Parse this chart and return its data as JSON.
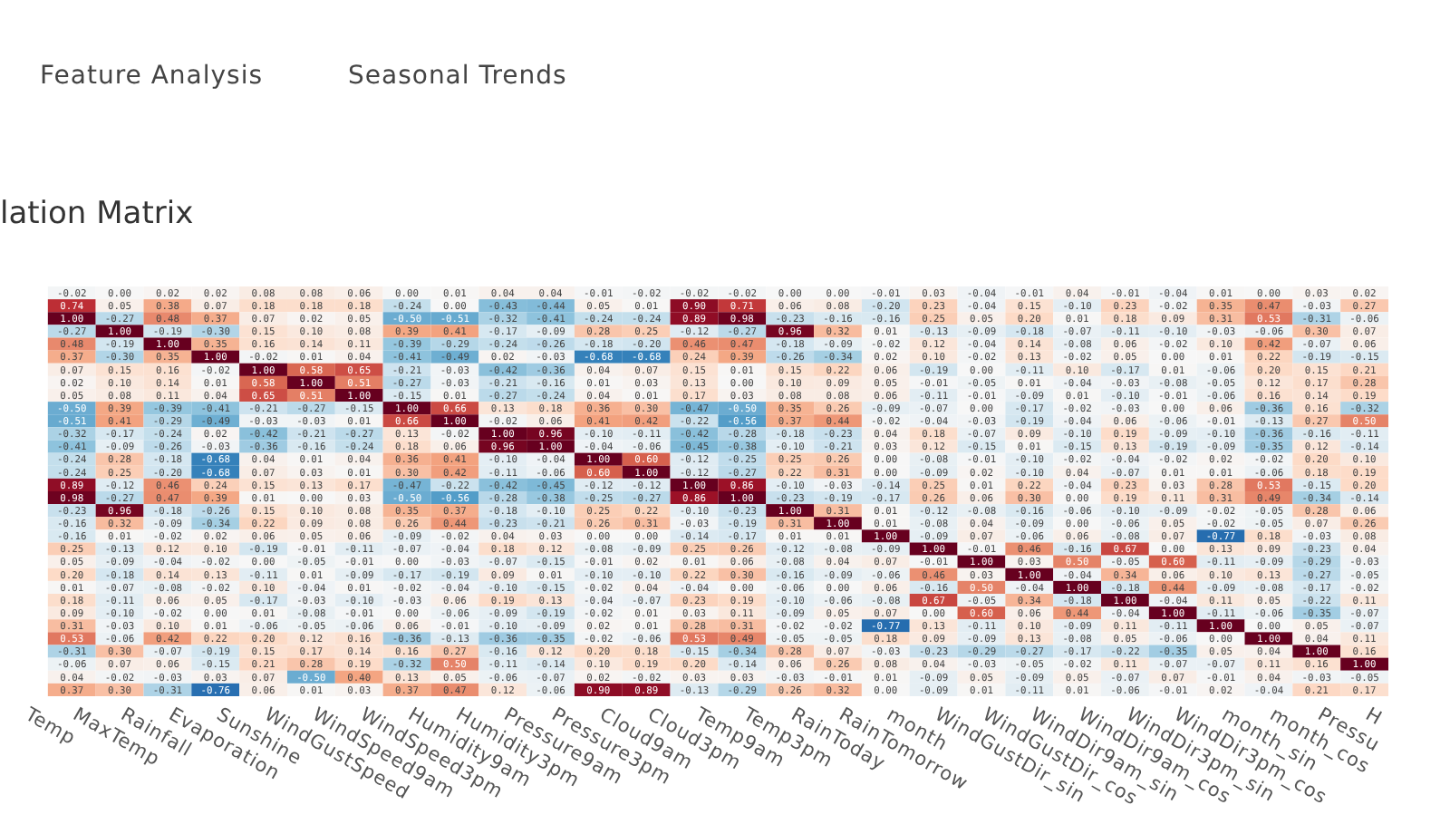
{
  "chart_data": {
    "type": "heatmap",
    "title": "lation Matrix",
    "annotations": [
      "Feature Analysis",
      "Seasonal Trends"
    ],
    "cell_labels": [
      [
        null,
        "-0.02",
        "0.00",
        "0.02",
        "0.02",
        "0.08",
        "0.08",
        "0.06",
        "0.00",
        "0.01",
        "0.04",
        "0.04",
        "-0.01",
        "-0.02",
        "-0.02",
        "-0.02",
        "0.00",
        "0.00",
        "-0.01",
        "0.03",
        "-0.04",
        "-0.01",
        "0.04",
        "-0.01",
        "-0.04",
        "0.01",
        "0.00",
        "0.03",
        "0.02"
      ],
      [
        null,
        "0.74",
        "0.05",
        "0.38",
        "0.07",
        "0.18",
        "0.18",
        "0.18",
        "-0.24",
        "0.00",
        "-0.43",
        "-0.44",
        "0.05",
        "0.01",
        "0.90",
        "0.71",
        "0.06",
        "0.08",
        "-0.20",
        "0.23",
        "-0.04",
        "0.15",
        "-0.10",
        "0.23",
        "-0.02",
        "0.35",
        "0.47",
        "-0.03",
        "0.27"
      ],
      [
        null,
        "1.00",
        "-0.27",
        "0.48",
        "0.37",
        "0.07",
        "0.02",
        "0.05",
        "-0.50",
        "-0.51",
        "-0.32",
        "-0.41",
        "-0.24",
        "-0.24",
        "0.89",
        "0.98",
        "-0.23",
        "-0.16",
        "-0.16",
        "0.25",
        "0.05",
        "0.20",
        "0.01",
        "0.18",
        "0.09",
        "0.31",
        "0.53",
        "-0.31",
        "-0.06"
      ],
      [
        null,
        "-0.27",
        "1.00",
        "-0.19",
        "-0.30",
        "0.15",
        "0.10",
        "0.08",
        "0.39",
        "0.41",
        "-0.17",
        "-0.09",
        "0.28",
        "0.25",
        "-0.12",
        "-0.27",
        "0.96",
        "0.32",
        "0.01",
        "-0.13",
        "-0.09",
        "-0.18",
        "-0.07",
        "-0.11",
        "-0.10",
        "-0.03",
        "-0.06",
        "0.30",
        "0.07"
      ],
      [
        null,
        "0.48",
        "-0.19",
        "1.00",
        "0.35",
        "0.16",
        "0.14",
        "0.11",
        "-0.39",
        "-0.29",
        "-0.24",
        "-0.26",
        "-0.18",
        "-0.20",
        "0.46",
        "0.47",
        "-0.18",
        "-0.09",
        "-0.02",
        "0.12",
        "-0.04",
        "0.14",
        "-0.08",
        "0.06",
        "-0.02",
        "0.10",
        "0.42",
        "-0.07",
        "0.06"
      ],
      [
        null,
        "0.37",
        "-0.30",
        "0.35",
        "1.00",
        "-0.02",
        "0.01",
        "0.04",
        "-0.41",
        "-0.49",
        "0.02",
        "-0.03",
        "-0.68",
        "-0.68",
        "0.24",
        "0.39",
        "-0.26",
        "-0.34",
        "0.02",
        "0.10",
        "-0.02",
        "0.13",
        "-0.02",
        "0.05",
        "0.00",
        "0.01",
        "0.22",
        "-0.19",
        "-0.15"
      ],
      [
        null,
        "0.07",
        "0.15",
        "0.16",
        "-0.02",
        "1.00",
        "0.58",
        "0.65",
        "-0.21",
        "-0.03",
        "-0.42",
        "-0.36",
        "0.04",
        "0.07",
        "0.15",
        "0.01",
        "0.15",
        "0.22",
        "0.06",
        "-0.19",
        "0.00",
        "-0.11",
        "0.10",
        "-0.17",
        "0.01",
        "-0.06",
        "0.20",
        "0.15",
        "0.21"
      ],
      [
        null,
        "0.02",
        "0.10",
        "0.14",
        "0.01",
        "0.58",
        "1.00",
        "0.51",
        "-0.27",
        "-0.03",
        "-0.21",
        "-0.16",
        "0.01",
        "0.03",
        "0.13",
        "0.00",
        "0.10",
        "0.09",
        "0.05",
        "-0.01",
        "-0.05",
        "0.01",
        "-0.04",
        "-0.03",
        "-0.08",
        "-0.05",
        "0.12",
        "0.17",
        "0.28"
      ],
      [
        null,
        "0.05",
        "0.08",
        "0.11",
        "0.04",
        "0.65",
        "0.51",
        "1.00",
        "-0.15",
        "0.01",
        "-0.27",
        "-0.24",
        "0.04",
        "0.01",
        "0.17",
        "0.03",
        "0.08",
        "0.08",
        "0.06",
        "-0.11",
        "-0.01",
        "-0.09",
        "0.01",
        "-0.10",
        "-0.01",
        "-0.06",
        "0.16",
        "0.14",
        "0.19"
      ],
      [
        null,
        "-0.50",
        "0.39",
        "-0.39",
        "-0.41",
        "-0.21",
        "-0.27",
        "-0.15",
        "1.00",
        "0.66",
        "0.13",
        "0.18",
        "0.36",
        "0.30",
        "-0.47",
        "-0.50",
        "0.35",
        "0.26",
        "-0.09",
        "-0.07",
        "0.00",
        "-0.17",
        "-0.02",
        "-0.03",
        "0.00",
        "0.06",
        "-0.36",
        "0.16",
        "-0.32"
      ],
      [
        null,
        "-0.51",
        "0.41",
        "-0.29",
        "-0.49",
        "-0.03",
        "-0.03",
        "0.01",
        "0.66",
        "1.00",
        "-0.02",
        "0.06",
        "0.41",
        "0.42",
        "-0.22",
        "-0.56",
        "0.37",
        "0.44",
        "-0.02",
        "-0.04",
        "-0.03",
        "-0.19",
        "-0.04",
        "0.06",
        "-0.06",
        "-0.01",
        "-0.13",
        "0.27",
        "0.50"
      ],
      [
        null,
        "-0.32",
        "-0.17",
        "-0.24",
        "0.02",
        "-0.42",
        "-0.21",
        "-0.27",
        "0.13",
        "-0.02",
        "1.00",
        "0.96",
        "-0.10",
        "-0.11",
        "-0.42",
        "-0.28",
        "-0.18",
        "-0.23",
        "0.04",
        "0.18",
        "-0.07",
        "0.09",
        "-0.10",
        "0.19",
        "-0.09",
        "-0.10",
        "-0.36",
        "-0.16",
        "-0.11"
      ],
      [
        null,
        "-0.41",
        "-0.09",
        "-0.26",
        "-0.03",
        "-0.36",
        "-0.16",
        "-0.24",
        "0.18",
        "0.06",
        "0.96",
        "1.00",
        "-0.04",
        "-0.06",
        "-0.45",
        "-0.38",
        "-0.10",
        "-0.21",
        "0.03",
        "0.12",
        "-0.15",
        "0.01",
        "-0.15",
        "0.13",
        "-0.19",
        "-0.09",
        "-0.35",
        "0.12",
        "-0.14"
      ],
      [
        null,
        "-0.24",
        "0.28",
        "-0.18",
        "-0.68",
        "0.04",
        "0.01",
        "0.04",
        "0.36",
        "0.41",
        "-0.10",
        "-0.04",
        "1.00",
        "0.60",
        "-0.12",
        "-0.25",
        "0.25",
        "0.26",
        "0.00",
        "-0.08",
        "-0.01",
        "-0.10",
        "-0.02",
        "-0.04",
        "-0.02",
        "0.02",
        "-0.02",
        "0.20",
        "0.10"
      ],
      [
        null,
        "-0.24",
        "0.25",
        "-0.20",
        "-0.68",
        "0.07",
        "0.03",
        "0.01",
        "0.30",
        "0.42",
        "-0.11",
        "-0.06",
        "0.60",
        "1.00",
        "-0.12",
        "-0.27",
        "0.22",
        "0.31",
        "0.00",
        "-0.09",
        "0.02",
        "-0.10",
        "0.04",
        "-0.07",
        "0.01",
        "0.01",
        "-0.06",
        "0.18",
        "0.19"
      ],
      [
        null,
        "0.89",
        "-0.12",
        "0.46",
        "0.24",
        "0.15",
        "0.13",
        "0.17",
        "-0.47",
        "-0.22",
        "-0.42",
        "-0.45",
        "-0.12",
        "-0.12",
        "1.00",
        "0.86",
        "-0.10",
        "-0.03",
        "-0.14",
        "0.25",
        "0.01",
        "0.22",
        "-0.04",
        "0.23",
        "0.03",
        "0.28",
        "0.53",
        "-0.15",
        "0.20"
      ],
      [
        null,
        "0.98",
        "-0.27",
        "0.47",
        "0.39",
        "0.01",
        "0.00",
        "0.03",
        "-0.50",
        "-0.56",
        "-0.28",
        "-0.38",
        "-0.25",
        "-0.27",
        "0.86",
        "1.00",
        "-0.23",
        "-0.19",
        "-0.17",
        "0.26",
        "0.06",
        "0.30",
        "0.00",
        "0.19",
        "0.11",
        "0.31",
        "0.49",
        "-0.34",
        "-0.14"
      ],
      [
        null,
        "-0.23",
        "0.96",
        "-0.18",
        "-0.26",
        "0.15",
        "0.10",
        "0.08",
        "0.35",
        "0.37",
        "-0.18",
        "-0.10",
        "0.25",
        "0.22",
        "-0.10",
        "-0.23",
        "1.00",
        "0.31",
        "0.01",
        "-0.12",
        "-0.08",
        "-0.16",
        "-0.06",
        "-0.10",
        "-0.09",
        "-0.02",
        "-0.05",
        "0.28",
        "0.06"
      ],
      [
        null,
        "-0.16",
        "0.32",
        "-0.09",
        "-0.34",
        "0.22",
        "0.09",
        "0.08",
        "0.26",
        "0.44",
        "-0.23",
        "-0.21",
        "0.26",
        "0.31",
        "-0.03",
        "-0.19",
        "0.31",
        "1.00",
        "0.01",
        "-0.08",
        "0.04",
        "-0.09",
        "0.00",
        "-0.06",
        "0.05",
        "-0.02",
        "-0.05",
        "0.07",
        "0.26"
      ],
      [
        null,
        "-0.16",
        "0.01",
        "-0.02",
        "0.02",
        "0.06",
        "0.05",
        "0.06",
        "-0.09",
        "-0.02",
        "0.04",
        "0.03",
        "0.00",
        "0.00",
        "-0.14",
        "-0.17",
        "0.01",
        "0.01",
        "1.00",
        "-0.09",
        "0.07",
        "-0.06",
        "0.06",
        "-0.08",
        "0.07",
        "-0.77",
        "0.18",
        "-0.03",
        "0.08"
      ],
      [
        null,
        "0.25",
        "-0.13",
        "0.12",
        "0.10",
        "-0.19",
        "-0.01",
        "-0.11",
        "-0.07",
        "-0.04",
        "0.18",
        "0.12",
        "-0.08",
        "-0.09",
        "0.25",
        "0.26",
        "-0.12",
        "-0.08",
        "-0.09",
        "1.00",
        "-0.01",
        "0.46",
        "-0.16",
        "0.67",
        "0.00",
        "0.13",
        "0.09",
        "-0.23",
        "0.04"
      ],
      [
        null,
        "0.05",
        "-0.09",
        "-0.04",
        "-0.02",
        "0.00",
        "-0.05",
        "-0.01",
        "0.00",
        "-0.03",
        "-0.07",
        "-0.15",
        "-0.01",
        "0.02",
        "0.01",
        "0.06",
        "-0.08",
        "0.04",
        "0.07",
        "-0.01",
        "1.00",
        "0.03",
        "0.50",
        "-0.05",
        "0.60",
        "-0.11",
        "-0.09",
        "-0.29",
        "-0.03"
      ],
      [
        null,
        "0.20",
        "-0.18",
        "0.14",
        "0.13",
        "-0.11",
        "0.01",
        "-0.09",
        "-0.17",
        "-0.19",
        "0.09",
        "0.01",
        "-0.10",
        "-0.10",
        "0.22",
        "0.30",
        "-0.16",
        "-0.09",
        "-0.06",
        "0.46",
        "0.03",
        "1.00",
        "-0.04",
        "0.34",
        "0.06",
        "0.10",
        "0.13",
        "-0.27",
        "-0.05"
      ],
      [
        null,
        "0.01",
        "-0.07",
        "-0.08",
        "-0.02",
        "0.10",
        "-0.04",
        "0.01",
        "-0.02",
        "-0.04",
        "-0.10",
        "-0.15",
        "-0.02",
        "0.04",
        "-0.04",
        "0.00",
        "-0.06",
        "0.00",
        "0.06",
        "-0.16",
        "0.50",
        "-0.04",
        "1.00",
        "-0.18",
        "0.44",
        "-0.09",
        "-0.08",
        "-0.17",
        "-0.02"
      ],
      [
        null,
        "0.18",
        "-0.11",
        "0.06",
        "0.05",
        "-0.17",
        "-0.03",
        "-0.10",
        "-0.03",
        "0.06",
        "0.19",
        "0.13",
        "-0.04",
        "-0.07",
        "0.23",
        "0.19",
        "-0.10",
        "-0.06",
        "-0.08",
        "0.67",
        "-0.05",
        "0.34",
        "-0.18",
        "1.00",
        "-0.04",
        "0.11",
        "0.05",
        "-0.22",
        "0.11"
      ],
      [
        null,
        "0.09",
        "-0.10",
        "-0.02",
        "0.00",
        "0.01",
        "-0.08",
        "-0.01",
        "0.00",
        "-0.06",
        "-0.09",
        "-0.19",
        "-0.02",
        "0.01",
        "0.03",
        "0.11",
        "-0.09",
        "0.05",
        "0.07",
        "0.00",
        "0.60",
        "0.06",
        "0.44",
        "-0.04",
        "1.00",
        "-0.11",
        "-0.06",
        "-0.35",
        "-0.07"
      ],
      [
        null,
        "0.31",
        "-0.03",
        "0.10",
        "0.01",
        "-0.06",
        "-0.05",
        "-0.06",
        "0.06",
        "-0.01",
        "-0.10",
        "-0.09",
        "0.02",
        "0.01",
        "0.28",
        "0.31",
        "-0.02",
        "-0.02",
        "-0.77",
        "0.13",
        "-0.11",
        "0.10",
        "-0.09",
        "0.11",
        "-0.11",
        "1.00",
        "0.00",
        "0.05",
        "-0.07"
      ],
      [
        null,
        "0.53",
        "-0.06",
        "0.42",
        "0.22",
        "0.20",
        "0.12",
        "0.16",
        "-0.36",
        "-0.13",
        "-0.36",
        "-0.35",
        "-0.02",
        "-0.06",
        "0.53",
        "0.49",
        "-0.05",
        "-0.05",
        "0.18",
        "0.09",
        "-0.09",
        "0.13",
        "-0.08",
        "0.05",
        "-0.06",
        "0.00",
        "1.00",
        "0.04",
        "0.11"
      ],
      [
        null,
        "-0.31",
        "0.30",
        "-0.07",
        "-0.19",
        "0.15",
        "0.17",
        "0.14",
        "0.16",
        "0.27",
        "-0.16",
        "0.12",
        "0.20",
        "0.18",
        "-0.15",
        "-0.34",
        "0.28",
        "0.07",
        "-0.03",
        "-0.23",
        "-0.29",
        "-0.27",
        "-0.17",
        "-0.22",
        "-0.35",
        "0.05",
        "0.04",
        "1.00",
        "0.16"
      ],
      [
        null,
        "-0.06",
        "0.07",
        "0.06",
        "-0.15",
        "0.21",
        "0.28",
        "0.19",
        "-0.32",
        "0.50",
        "-0.11",
        "-0.14",
        "0.10",
        "0.19",
        "0.20",
        "-0.14",
        "0.06",
        "0.26",
        "0.08",
        "0.04",
        "-0.03",
        "-0.05",
        "-0.02",
        "0.11",
        "-0.07",
        "-0.07",
        "0.11",
        "0.16",
        "1.00"
      ],
      [
        null,
        "0.04",
        "-0.02",
        "-0.03",
        "0.03",
        "0.07",
        "-0.50",
        "0.40",
        "0.13",
        "0.05",
        "-0.06",
        "-0.07",
        "0.02",
        "-0.02",
        "0.03",
        "0.03",
        "-0.03",
        "-0.01",
        "0.01",
        "-0.09",
        "0.05",
        "-0.09",
        "0.05",
        "-0.07",
        "0.07",
        "-0.01",
        "0.04",
        "-0.03",
        "-0.05"
      ],
      [
        null,
        "0.37",
        "0.30",
        "-0.31",
        "-0.76",
        "0.06",
        "0.01",
        "0.03",
        "0.37",
        "0.47",
        "0.12",
        "-0.06",
        "0.90",
        "0.89",
        "-0.13",
        "-0.29",
        "0.26",
        "0.32",
        "0.00",
        "-0.09",
        "0.01",
        "-0.11",
        "0.01",
        "-0.06",
        "-0.01",
        "0.02",
        "-0.04",
        "0.21",
        "0.17"
      ]
    ],
    "categories": [
      "Temp",
      "MaxTemp",
      "Rainfall",
      "Evaporation",
      "Sunshine",
      "WindGustSpeed",
      "WindSpeed9am",
      "WindSpeed3pm",
      "Humidity9am",
      "Humidity3pm",
      "Pressure9am",
      "Pressure3pm",
      "Cloud9am",
      "Cloud3pm",
      "Temp9am",
      "Temp3pm",
      "RainToday",
      "RainTomorrow",
      "month",
      "WindGustDir_sin",
      "WindGustDir_cos",
      "WindDir9am_sin",
      "WindDir9am_cos",
      "WindDir3pm_sin",
      "WindDir3pm_cos",
      "month_sin",
      "month_cos",
      "Pressu",
      "H"
    ],
    "y_categories": [
      null,
      null,
      null,
      null,
      null,
      null,
      null,
      null,
      null,
      null,
      null,
      null,
      null,
      null,
      null,
      null,
      null,
      null,
      null,
      null,
      null,
      null,
      null,
      null,
      null,
      null,
      null,
      null,
      null,
      null,
      null,
      null
    ],
    "cells": [
      [
        null,
        -0.02,
        0.0,
        0.02,
        0.02,
        0.08,
        0.08,
        0.06,
        0.0,
        0.01,
        0.04,
        0.04,
        -0.01,
        -0.02,
        -0.02,
        -0.02,
        0.0,
        0.0,
        -0.01,
        0.03,
        -0.04,
        -0.01,
        0.04,
        -0.01,
        -0.04,
        0.01,
        0.0,
        0.03,
        0.02
      ],
      [
        null,
        0.74,
        0.05,
        0.38,
        0.07,
        0.18,
        0.18,
        0.18,
        -0.24,
        0.0,
        -0.43,
        -0.44,
        0.05,
        0.01,
        0.9,
        0.71,
        0.06,
        0.08,
        -0.2,
        0.23,
        -0.04,
        0.15,
        -0.1,
        0.23,
        -0.02,
        0.35,
        0.47,
        -0.03,
        0.27
      ],
      [
        null,
        1.0,
        -0.27,
        0.48,
        0.37,
        0.07,
        0.02,
        0.05,
        -0.5,
        -0.51,
        -0.32,
        -0.41,
        -0.24,
        -0.24,
        0.89,
        0.98,
        -0.23,
        -0.16,
        -0.16,
        0.25,
        0.05,
        0.2,
        0.01,
        0.18,
        0.09,
        0.31,
        0.53,
        -0.31,
        -0.06
      ],
      [
        null,
        -0.27,
        1.0,
        -0.19,
        -0.3,
        0.15,
        0.1,
        0.08,
        0.39,
        0.41,
        -0.17,
        -0.09,
        0.28,
        0.25,
        -0.12,
        -0.27,
        0.96,
        0.32,
        0.01,
        -0.13,
        -0.09,
        -0.18,
        -0.07,
        -0.11,
        -0.1,
        -0.03,
        -0.06,
        0.3,
        0.07
      ],
      [
        null,
        0.48,
        -0.19,
        1.0,
        0.35,
        0.16,
        0.14,
        0.11,
        -0.39,
        -0.29,
        -0.24,
        -0.26,
        -0.18,
        -0.2,
        0.46,
        0.47,
        -0.18,
        -0.09,
        -0.02,
        0.12,
        -0.04,
        0.14,
        -0.08,
        0.06,
        -0.02,
        0.1,
        0.42,
        -0.07,
        0.06
      ],
      [
        null,
        0.37,
        -0.3,
        0.35,
        1.0,
        -0.02,
        0.01,
        0.04,
        -0.41,
        -0.49,
        0.02,
        -0.03,
        -0.68,
        -0.68,
        0.24,
        0.39,
        -0.26,
        -0.34,
        0.02,
        0.1,
        -0.02,
        0.13,
        -0.02,
        0.05,
        0.0,
        0.01,
        0.22,
        -0.19,
        -0.15
      ],
      [
        null,
        0.07,
        0.15,
        0.16,
        -0.02,
        1.0,
        0.58,
        0.65,
        -0.21,
        -0.03,
        -0.42,
        -0.36,
        0.04,
        0.07,
        0.15,
        0.01,
        0.15,
        0.22,
        0.06,
        -0.19,
        0.0,
        -0.11,
        0.1,
        -0.17,
        0.01,
        -0.06,
        0.2,
        0.15,
        0.21
      ],
      [
        null,
        0.02,
        0.1,
        0.14,
        0.01,
        0.58,
        1.0,
        0.51,
        -0.27,
        -0.03,
        -0.21,
        -0.16,
        0.01,
        0.03,
        0.13,
        0.0,
        0.1,
        0.09,
        0.05,
        -0.01,
        -0.05,
        0.01,
        -0.04,
        -0.03,
        -0.08,
        -0.05,
        0.12,
        0.17,
        0.28
      ],
      [
        null,
        0.05,
        0.08,
        0.11,
        0.04,
        0.65,
        0.51,
        1.0,
        -0.15,
        0.01,
        -0.27,
        -0.24,
        0.04,
        0.01,
        0.17,
        0.03,
        0.08,
        0.08,
        0.06,
        -0.11,
        -0.01,
        -0.09,
        0.01,
        -0.1,
        -0.01,
        -0.06,
        0.16,
        0.14,
        0.19
      ],
      [
        null,
        -0.5,
        0.39,
        -0.39,
        -0.41,
        -0.21,
        -0.27,
        -0.15,
        1.0,
        0.66,
        0.13,
        0.18,
        0.36,
        0.3,
        -0.47,
        -0.5,
        0.35,
        0.26,
        -0.09,
        -0.07,
        0.0,
        -0.17,
        -0.02,
        -0.03,
        0.0,
        0.06,
        -0.36,
        0.16,
        -0.32
      ],
      [
        null,
        -0.51,
        0.41,
        -0.29,
        -0.49,
        -0.03,
        -0.03,
        0.01,
        0.66,
        1.0,
        -0.02,
        0.06,
        0.41,
        0.42,
        -0.22,
        -0.56,
        0.37,
        0.44,
        -0.02,
        -0.04,
        -0.03,
        -0.19,
        -0.04,
        0.06,
        -0.06,
        -0.01,
        -0.13,
        0.27,
        0.5
      ],
      [
        null,
        -0.32,
        -0.17,
        -0.24,
        0.02,
        -0.42,
        -0.21,
        -0.27,
        0.13,
        -0.02,
        1.0,
        0.96,
        -0.1,
        -0.11,
        -0.42,
        -0.28,
        -0.18,
        -0.23,
        0.04,
        0.18,
        -0.07,
        0.09,
        -0.1,
        0.19,
        -0.09,
        -0.1,
        -0.36,
        -0.16,
        -0.11
      ],
      [
        null,
        -0.41,
        -0.09,
        -0.26,
        -0.03,
        -0.36,
        -0.16,
        -0.24,
        0.18,
        0.06,
        0.96,
        1.0,
        -0.04,
        -0.06,
        -0.45,
        -0.38,
        -0.1,
        -0.21,
        0.03,
        0.12,
        -0.15,
        0.01,
        -0.15,
        0.13,
        -0.19,
        -0.09,
        -0.35,
        0.12,
        -0.14
      ],
      [
        null,
        -0.24,
        0.28,
        -0.18,
        -0.68,
        0.04,
        0.01,
        0.04,
        0.36,
        0.41,
        -0.1,
        -0.04,
        1.0,
        0.6,
        -0.12,
        -0.25,
        0.25,
        0.26,
        0.0,
        -0.08,
        -0.01,
        -0.1,
        -0.02,
        -0.04,
        -0.02,
        0.02,
        -0.02,
        0.2,
        0.1
      ],
      [
        null,
        -0.24,
        0.25,
        -0.2,
        -0.68,
        0.07,
        0.03,
        0.01,
        0.3,
        0.42,
        -0.11,
        -0.06,
        0.6,
        1.0,
        -0.12,
        -0.27,
        0.22,
        0.31,
        0.0,
        -0.09,
        0.02,
        -0.1,
        0.04,
        -0.07,
        0.01,
        0.01,
        -0.06,
        0.18,
        0.19
      ],
      [
        null,
        0.89,
        -0.12,
        0.46,
        0.24,
        0.15,
        0.13,
        0.17,
        -0.47,
        -0.22,
        -0.42,
        -0.45,
        -0.12,
        -0.12,
        1.0,
        0.86,
        -0.1,
        -0.03,
        -0.14,
        0.25,
        0.01,
        0.22,
        -0.04,
        0.23,
        0.03,
        0.28,
        0.53,
        -0.15,
        0.2
      ],
      [
        null,
        0.98,
        -0.27,
        0.47,
        0.39,
        0.01,
        0.0,
        0.03,
        -0.5,
        -0.56,
        -0.28,
        -0.38,
        -0.25,
        -0.27,
        0.86,
        1.0,
        -0.23,
        -0.19,
        -0.17,
        0.26,
        0.06,
        0.3,
        0.0,
        0.19,
        0.11,
        0.31,
        0.49,
        -0.34,
        -0.14
      ],
      [
        null,
        -0.23,
        0.96,
        -0.18,
        -0.26,
        0.15,
        0.1,
        0.08,
        0.35,
        0.37,
        -0.18,
        -0.1,
        0.25,
        0.22,
        -0.1,
        -0.23,
        1.0,
        0.31,
        0.01,
        -0.12,
        -0.08,
        -0.16,
        -0.06,
        -0.1,
        -0.09,
        -0.02,
        -0.05,
        0.28,
        0.06
      ],
      [
        null,
        -0.16,
        0.32,
        -0.09,
        -0.34,
        0.22,
        0.09,
        0.08,
        0.26,
        0.44,
        -0.23,
        -0.21,
        0.26,
        0.31,
        -0.03,
        -0.19,
        0.31,
        1.0,
        0.01,
        -0.08,
        0.04,
        -0.09,
        0.0,
        -0.06,
        0.05,
        -0.02,
        -0.05,
        0.07,
        0.26
      ],
      [
        null,
        -0.16,
        0.01,
        -0.02,
        0.02,
        0.06,
        0.05,
        0.06,
        -0.09,
        -0.02,
        0.04,
        0.03,
        0.0,
        0.0,
        -0.14,
        -0.17,
        0.01,
        0.01,
        1.0,
        -0.09,
        0.07,
        -0.06,
        0.06,
        -0.08,
        0.07,
        -0.77,
        0.18,
        -0.03,
        0.08
      ],
      [
        null,
        0.25,
        -0.13,
        0.12,
        0.1,
        -0.19,
        -0.01,
        -0.11,
        -0.07,
        -0.04,
        0.18,
        0.12,
        -0.08,
        -0.09,
        0.25,
        0.26,
        -0.12,
        -0.08,
        -0.09,
        1.0,
        -0.01,
        0.46,
        -0.16,
        0.67,
        0.0,
        0.13,
        0.09,
        -0.23,
        0.04
      ],
      [
        null,
        0.05,
        -0.09,
        -0.04,
        -0.02,
        0.0,
        -0.05,
        -0.01,
        0.0,
        -0.03,
        -0.07,
        -0.15,
        -0.01,
        0.02,
        0.01,
        0.06,
        -0.08,
        0.04,
        0.07,
        -0.01,
        1.0,
        0.03,
        0.5,
        -0.05,
        0.6,
        -0.11,
        -0.09,
        -0.29,
        -0.03
      ],
      [
        null,
        0.2,
        -0.18,
        0.14,
        0.13,
        -0.11,
        0.01,
        -0.09,
        -0.17,
        -0.19,
        0.09,
        0.01,
        -0.1,
        -0.1,
        0.22,
        0.3,
        -0.16,
        -0.09,
        -0.06,
        0.46,
        0.03,
        1.0,
        -0.04,
        0.34,
        0.06,
        0.1,
        0.13,
        -0.27,
        -0.05
      ],
      [
        null,
        0.01,
        -0.07,
        -0.08,
        -0.02,
        0.1,
        -0.04,
        0.01,
        -0.02,
        -0.04,
        -0.1,
        -0.15,
        -0.02,
        0.04,
        -0.04,
        0.0,
        -0.06,
        0.0,
        0.06,
        -0.16,
        0.5,
        -0.04,
        1.0,
        -0.18,
        0.44,
        -0.09,
        -0.08,
        -0.17,
        -0.02
      ],
      [
        null,
        0.18,
        -0.11,
        0.06,
        0.05,
        -0.17,
        -0.03,
        -0.1,
        -0.03,
        0.06,
        0.19,
        0.13,
        -0.04,
        -0.07,
        0.23,
        0.19,
        -0.1,
        -0.06,
        -0.08,
        0.67,
        -0.05,
        0.34,
        -0.18,
        1.0,
        -0.04,
        0.11,
        0.05,
        -0.22,
        0.11
      ],
      [
        null,
        0.09,
        -0.1,
        -0.02,
        0.0,
        0.01,
        -0.08,
        -0.01,
        0.0,
        -0.06,
        -0.09,
        -0.19,
        -0.02,
        0.01,
        0.03,
        0.11,
        -0.09,
        0.05,
        0.07,
        0.0,
        0.6,
        0.06,
        0.44,
        -0.04,
        1.0,
        -0.11,
        -0.06,
        -0.35,
        -0.07
      ],
      [
        null,
        0.31,
        -0.03,
        0.1,
        0.01,
        -0.06,
        -0.05,
        -0.06,
        0.06,
        -0.01,
        -0.1,
        -0.09,
        0.02,
        0.01,
        0.28,
        0.31,
        -0.02,
        -0.02,
        -0.77,
        0.13,
        -0.11,
        0.1,
        -0.09,
        0.11,
        -0.11,
        1.0,
        0.0,
        0.05,
        -0.07
      ],
      [
        null,
        0.53,
        -0.06,
        0.42,
        0.22,
        0.2,
        0.12,
        0.16,
        -0.36,
        -0.13,
        -0.36,
        -0.35,
        -0.02,
        -0.06,
        0.53,
        0.49,
        -0.05,
        -0.05,
        0.18,
        0.09,
        -0.09,
        0.13,
        -0.08,
        0.05,
        -0.06,
        0.0,
        1.0,
        0.04,
        0.11
      ],
      [
        null,
        -0.31,
        0.3,
        -0.07,
        -0.19,
        0.15,
        0.17,
        0.14,
        0.16,
        0.27,
        -0.16,
        0.12,
        0.2,
        0.18,
        -0.15,
        -0.34,
        0.28,
        0.07,
        -0.03,
        -0.23,
        -0.29,
        -0.27,
        -0.17,
        -0.22,
        -0.35,
        0.05,
        0.04,
        1.0,
        0.16
      ],
      [
        null,
        -0.06,
        0.07,
        0.06,
        -0.15,
        0.21,
        0.28,
        0.19,
        -0.32,
        0.5,
        -0.11,
        -0.14,
        0.1,
        0.19,
        0.2,
        -0.14,
        0.06,
        0.26,
        0.08,
        0.04,
        -0.03,
        -0.05,
        -0.02,
        0.11,
        -0.07,
        -0.07,
        0.11,
        0.16,
        1.0
      ],
      [
        null,
        0.04,
        -0.02,
        -0.03,
        0.03,
        0.07,
        -0.5,
        0.4,
        0.13,
        0.05,
        -0.06,
        -0.07,
        0.02,
        -0.02,
        0.03,
        0.03,
        -0.03,
        -0.01,
        0.01,
        -0.09,
        0.05,
        -0.09,
        0.05,
        -0.07,
        0.07,
        -0.01,
        0.04,
        -0.03,
        -0.05
      ],
      [
        null,
        0.37,
        0.3,
        -0.31,
        -0.76,
        0.06,
        0.01,
        0.03,
        0.37,
        0.47,
        0.12,
        -0.06,
        0.9,
        0.89,
        -0.13,
        -0.29,
        0.26,
        0.32,
        0.0,
        -0.09,
        0.01,
        -0.11,
        0.01,
        -0.06,
        -0.01,
        0.02,
        -0.04,
        0.21,
        0.17
      ]
    ]
  }
}
